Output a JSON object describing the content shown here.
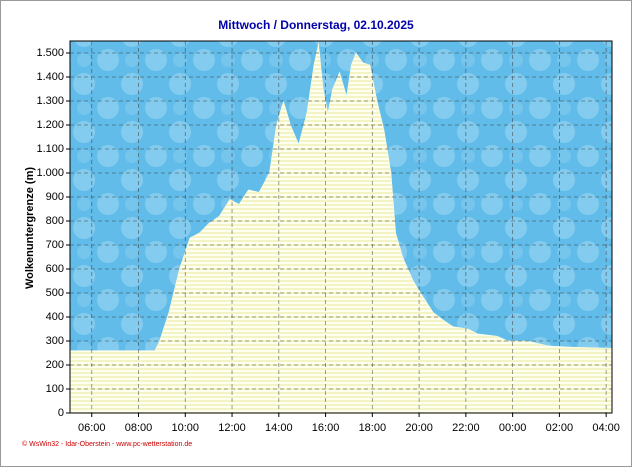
{
  "chart_data": {
    "type": "area",
    "title": "Mittwoch / Donnerstag, 02.10.2025",
    "y_label": "Wolkenuntergrenze  (m)",
    "footer": "© WsWin32 - Idar-Oberstein - www.pc-wetterstation.de",
    "x": [
      5.07,
      8.7,
      8.9,
      9.3,
      9.75,
      10.2,
      10.6,
      11.0,
      11.45,
      11.9,
      12.3,
      12.7,
      13.15,
      13.6,
      13.9,
      14.2,
      14.5,
      14.85,
      15.2,
      15.5,
      15.7,
      15.9,
      16.1,
      16.3,
      16.6,
      16.9,
      17.1,
      17.3,
      17.6,
      17.9,
      18.2,
      18.5,
      18.8,
      19.0,
      19.3,
      19.75,
      20.2,
      20.6,
      21.0,
      21.45,
      22.1,
      22.5,
      23.35,
      23.8,
      24.65,
      25.5,
      26.35,
      28.25
    ],
    "values": [
      260,
      260,
      300,
      420,
      600,
      730,
      750,
      790,
      820,
      890,
      870,
      930,
      920,
      1000,
      1200,
      1300,
      1200,
      1120,
      1250,
      1450,
      1540,
      1350,
      1250,
      1350,
      1420,
      1320,
      1450,
      1500,
      1460,
      1450,
      1300,
      1180,
      1000,
      750,
      650,
      550,
      480,
      420,
      390,
      360,
      350,
      330,
      320,
      300,
      300,
      280,
      275,
      270
    ],
    "color": "#fdfde0",
    "sky_color": "#6cc3ec",
    "xlim": [
      5.07,
      28.25
    ],
    "xticks": [
      {
        "value": 6,
        "label": "06:00"
      },
      {
        "value": 8,
        "label": "08:00"
      },
      {
        "value": 10,
        "label": "10:00"
      },
      {
        "value": 12,
        "label": "12:00"
      },
      {
        "value": 14,
        "label": "14:00"
      },
      {
        "value": 16,
        "label": "16:00"
      },
      {
        "value": 18,
        "label": "18:00"
      },
      {
        "value": 20,
        "label": "20:00"
      },
      {
        "value": 22,
        "label": "22:00"
      },
      {
        "value": 24,
        "label": "00:00"
      },
      {
        "value": 26,
        "label": "02:00"
      },
      {
        "value": 28,
        "label": "04:00"
      }
    ],
    "ylim": [
      0,
      1550
    ],
    "yticks": [
      0,
      100,
      200,
      300,
      400,
      500,
      600,
      700,
      800,
      900,
      {
        "value": 1000,
        "label": "1.000"
      },
      {
        "value": 1100,
        "label": "1.100"
      },
      {
        "value": 1200,
        "label": "1.200"
      },
      {
        "value": 1300,
        "label": "1.300"
      },
      {
        "value": 1400,
        "label": "1.400"
      },
      {
        "value": 1500,
        "label": "1.500"
      }
    ],
    "grid": true
  }
}
